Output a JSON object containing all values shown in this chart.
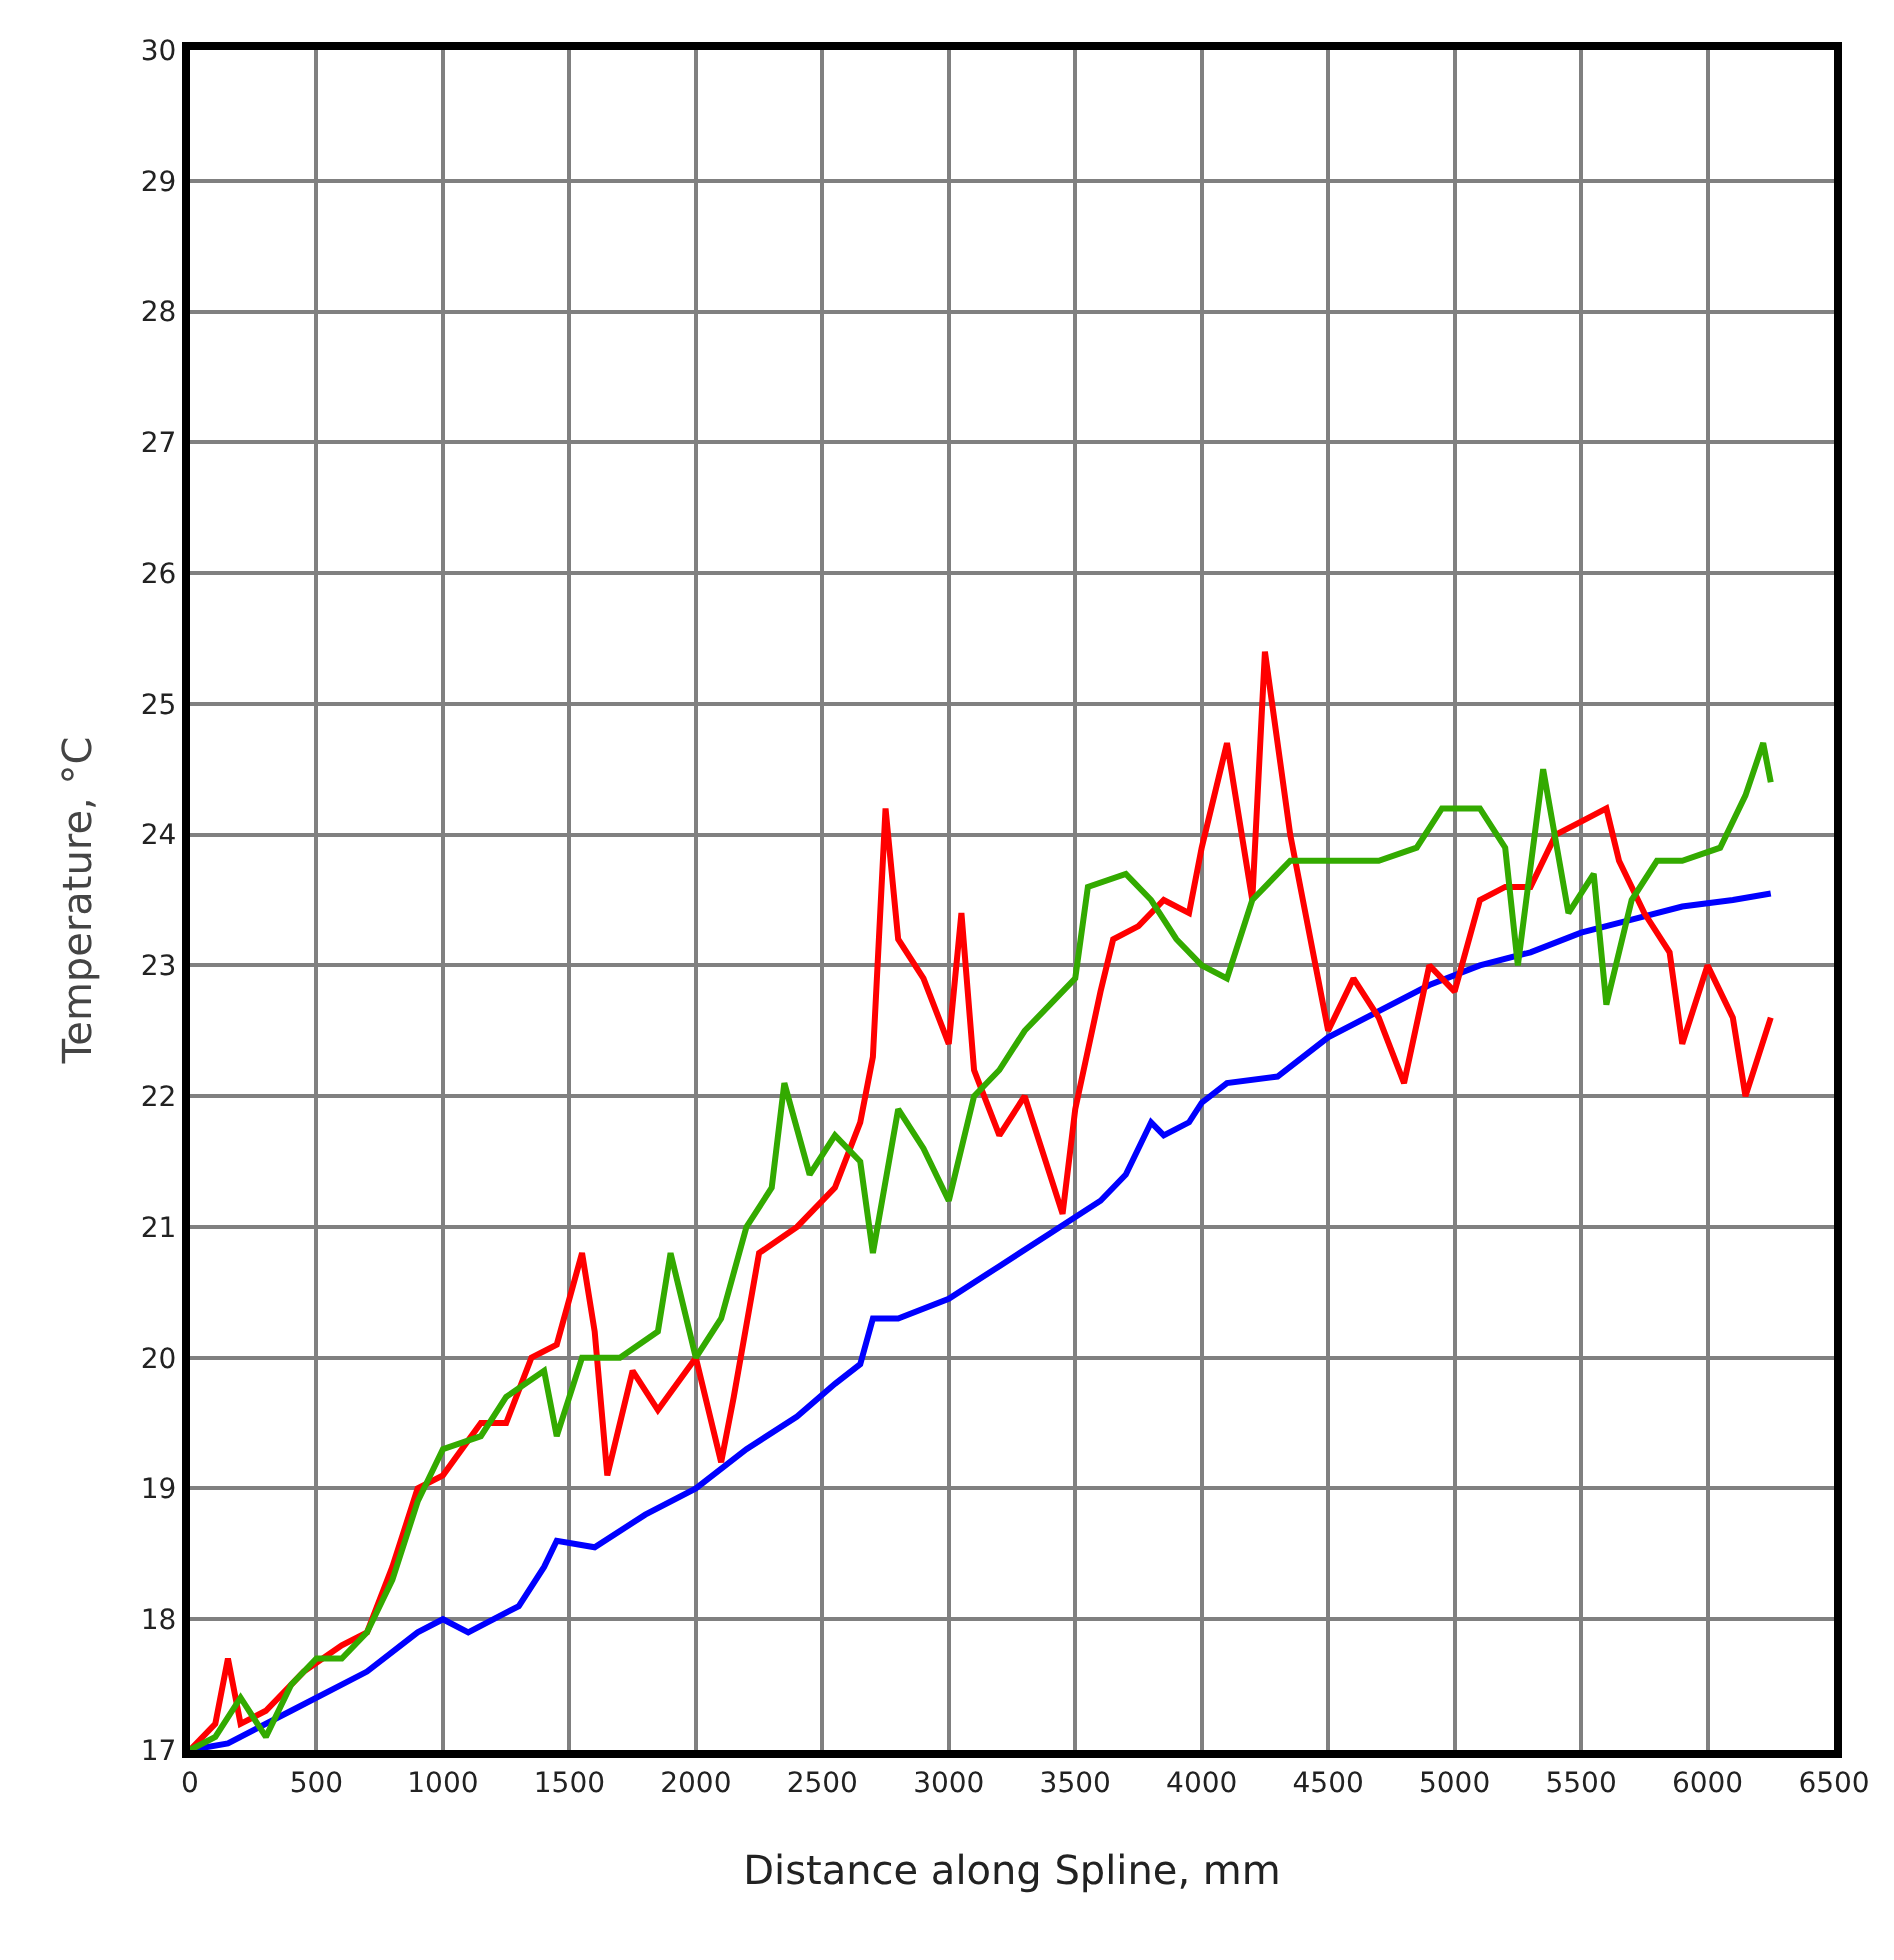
{
  "chart_data": {
    "type": "line",
    "xlabel": "Distance along Spline, mm",
    "ylabel": "Temperature, °C",
    "xlim": [
      0,
      6500
    ],
    "xticks": [
      0,
      500,
      1000,
      1500,
      2000,
      2500,
      3000,
      3500,
      4000,
      4500,
      5000,
      5500,
      6000,
      6500
    ],
    "ylim": [
      17,
      30
    ],
    "yticks": [
      17,
      18,
      19,
      20,
      21,
      22,
      23,
      24,
      25,
      26,
      27,
      28,
      29,
      30
    ],
    "grid": true,
    "marker": "none",
    "line_style": "solid",
    "series": [
      {
        "color": "#0000ff",
        "x": [
          0,
          150,
          400,
          700,
          900,
          1000,
          1100,
          1300,
          1400,
          1450,
          1600,
          1800,
          2000,
          2200,
          2400,
          2550,
          2650,
          2700,
          2800,
          3000,
          3200,
          3400,
          3600,
          3700,
          3800,
          3850,
          3950,
          4000,
          4100,
          4300,
          4500,
          4700,
          4900,
          5100,
          5300,
          5500,
          5700,
          5900,
          6100,
          6250
        ],
        "values": [
          17,
          17.05,
          17.3,
          17.6,
          17.9,
          18.0,
          17.9,
          18.1,
          18.4,
          18.6,
          18.55,
          18.8,
          19.0,
          19.3,
          19.55,
          19.8,
          19.95,
          20.3,
          20.3,
          20.45,
          20.7,
          20.95,
          21.2,
          21.4,
          21.8,
          21.7,
          21.8,
          21.95,
          22.1,
          22.15,
          22.45,
          22.65,
          22.85,
          23.0,
          23.1,
          23.25,
          23.35,
          23.45,
          23.5,
          23.55
        ]
      },
      {
        "color": "#ff0000",
        "x": [
          0,
          100,
          150,
          200,
          300,
          450,
          600,
          700,
          800,
          900,
          1000,
          1150,
          1250,
          1350,
          1450,
          1550,
          1600,
          1650,
          1750,
          1850,
          2000,
          2100,
          2150,
          2250,
          2400,
          2550,
          2650,
          2700,
          2750,
          2800,
          2900,
          3000,
          3050,
          3100,
          3200,
          3300,
          3400,
          3450,
          3500,
          3600,
          3650,
          3750,
          3850,
          3950,
          4000,
          4100,
          4200,
          4250,
          4350,
          4400,
          4500,
          4600,
          4700,
          4800,
          4900,
          5000,
          5100,
          5200,
          5300,
          5400,
          5500,
          5600,
          5650,
          5750,
          5850,
          5900,
          6000,
          6100,
          6150,
          6250
        ],
        "values": [
          17,
          17.2,
          17.7,
          17.2,
          17.3,
          17.6,
          17.8,
          17.9,
          18.4,
          19.0,
          19.1,
          19.5,
          19.5,
          20.0,
          20.1,
          20.8,
          20.2,
          19.1,
          19.9,
          19.6,
          20.0,
          19.2,
          19.7,
          20.8,
          21.0,
          21.3,
          21.8,
          22.3,
          24.2,
          23.2,
          22.9,
          22.4,
          23.4,
          22.2,
          21.7,
          22.0,
          21.4,
          21.1,
          21.9,
          22.8,
          23.2,
          23.3,
          23.5,
          23.4,
          23.9,
          24.7,
          23.5,
          25.4,
          24.0,
          23.5,
          22.5,
          22.9,
          22.6,
          22.1,
          23.0,
          22.8,
          23.5,
          23.6,
          23.6,
          24.0,
          24.1,
          24.2,
          23.8,
          23.4,
          23.1,
          22.4,
          23.0,
          22.6,
          22.0,
          22.6
        ]
      },
      {
        "color": "#33aa00",
        "x": [
          0,
          100,
          200,
          300,
          400,
          500,
          600,
          700,
          800,
          900,
          1000,
          1150,
          1250,
          1400,
          1450,
          1550,
          1700,
          1850,
          1900,
          2000,
          2100,
          2200,
          2300,
          2350,
          2450,
          2550,
          2650,
          2700,
          2800,
          2900,
          3000,
          3100,
          3200,
          3300,
          3400,
          3500,
          3550,
          3700,
          3800,
          3900,
          4000,
          4100,
          4200,
          4350,
          4500,
          4700,
          4850,
          4950,
          5100,
          5200,
          5250,
          5350,
          5450,
          5550,
          5600,
          5700,
          5800,
          5900,
          6050,
          6150,
          6220,
          6250
        ],
        "values": [
          17,
          17.1,
          17.4,
          17.1,
          17.5,
          17.7,
          17.7,
          17.9,
          18.3,
          18.9,
          19.3,
          19.4,
          19.7,
          19.9,
          19.4,
          20.0,
          20.0,
          20.2,
          20.8,
          20.0,
          20.3,
          21.0,
          21.3,
          22.1,
          21.4,
          21.7,
          21.5,
          20.8,
          21.9,
          21.6,
          21.2,
          22.0,
          22.2,
          22.5,
          22.7,
          22.9,
          23.6,
          23.7,
          23.5,
          23.2,
          23.0,
          22.9,
          23.5,
          23.8,
          23.8,
          23.8,
          23.9,
          24.2,
          24.2,
          23.9,
          23.0,
          24.5,
          23.4,
          23.7,
          22.7,
          23.5,
          23.8,
          23.8,
          23.9,
          24.3,
          24.7,
          24.4
        ]
      }
    ]
  }
}
